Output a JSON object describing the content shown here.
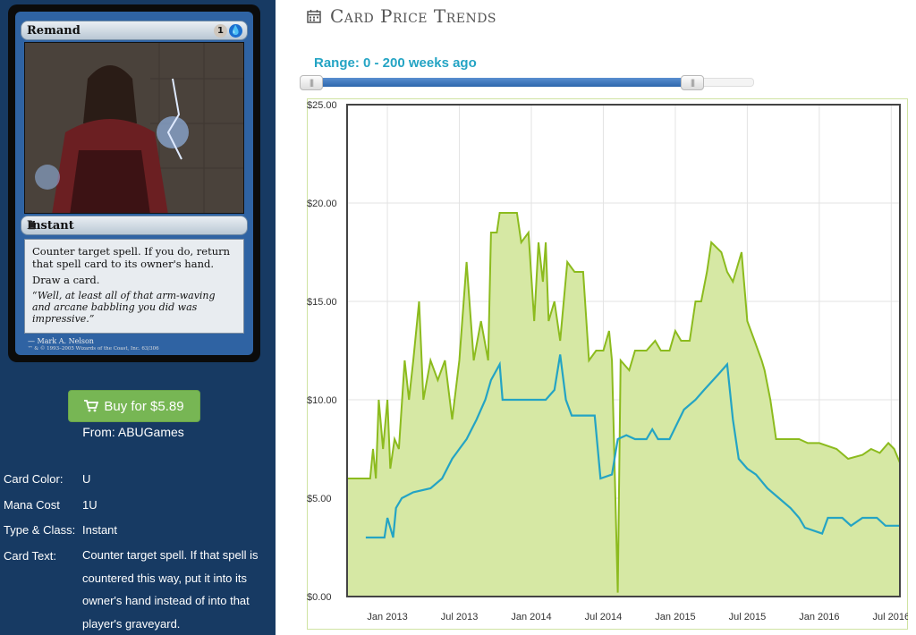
{
  "card": {
    "name": "Remand",
    "mana_generic": "1",
    "mana_blue": "",
    "type_line": "Instant",
    "rules": [
      "Counter target spell. If you do, return that spell card to its owner's hand.",
      "Draw a card."
    ],
    "flavor": "“Well, at least all of that arm-waving and arcane babbling you did was impressive.”",
    "artist": "Mark A. Nelson",
    "copyright": "™ & © 1993–2005 Wizards of the Coast, Inc. 63/306"
  },
  "buy": {
    "label": "Buy for $5.89",
    "icon": "cart-icon",
    "color": "#77b654",
    "from": "From: ABUGames"
  },
  "details": [
    {
      "label": "Card Color:",
      "value": "U"
    },
    {
      "label": "Mana Cost",
      "value": "1U"
    },
    {
      "label": "Type & Class:",
      "value": "Instant"
    },
    {
      "label": "Card Text:",
      "value": "Counter target spell. If that spell is countered this way, put it into its owner's hand instead of into that player's graveyard."
    }
  ],
  "trends": {
    "title": "Card Price Trends",
    "icon": "calendar-icon",
    "range_label": "Range: 0 - 200 weeks ago",
    "range_start_fraction": 0.02,
    "range_end_fraction": 0.86
  },
  "chart_data": {
    "type": "line",
    "title": "",
    "xlabel": "",
    "ylabel": "",
    "ylim": [
      0,
      25
    ],
    "yticks": [
      "$0.00",
      "$5.00",
      "$10.00",
      "$15.00",
      "$20.00",
      "$25.00"
    ],
    "xticks": [
      {
        "label": "Jan 2013",
        "t": 2013.0
      },
      {
        "label": "Jul 2013",
        "t": 2013.5
      },
      {
        "label": "Jan 2014",
        "t": 2014.0
      },
      {
        "label": "Jul 2014",
        "t": 2014.5
      },
      {
        "label": "Jan 2015",
        "t": 2015.0
      },
      {
        "label": "Jul 2015",
        "t": 2015.5
      },
      {
        "label": "Jan 2016",
        "t": 2016.0
      },
      {
        "label": "Jul 2016",
        "t": 2016.5
      }
    ],
    "xlim": [
      2012.72,
      2016.56
    ],
    "series": [
      {
        "name": "",
        "color": "#8cbb1e",
        "fill": "#d6e8a4",
        "points": [
          [
            2012.72,
            6.0
          ],
          [
            2012.88,
            6.0
          ],
          [
            2012.9,
            7.5
          ],
          [
            2012.92,
            6.0
          ],
          [
            2012.94,
            10.0
          ],
          [
            2012.97,
            7.5
          ],
          [
            2013.0,
            10.0
          ],
          [
            2013.02,
            6.5
          ],
          [
            2013.05,
            8.0
          ],
          [
            2013.08,
            7.5
          ],
          [
            2013.12,
            12.0
          ],
          [
            2013.15,
            10.0
          ],
          [
            2013.18,
            12.0
          ],
          [
            2013.22,
            15.0
          ],
          [
            2013.25,
            10.0
          ],
          [
            2013.3,
            12.0
          ],
          [
            2013.35,
            11.0
          ],
          [
            2013.4,
            12.0
          ],
          [
            2013.45,
            9.0
          ],
          [
            2013.5,
            12.0
          ],
          [
            2013.55,
            17.0
          ],
          [
            2013.6,
            12.0
          ],
          [
            2013.65,
            14.0
          ],
          [
            2013.7,
            12.0
          ],
          [
            2013.72,
            18.5
          ],
          [
            2013.76,
            18.5
          ],
          [
            2013.78,
            19.5
          ],
          [
            2013.9,
            19.5
          ],
          [
            2013.93,
            18.0
          ],
          [
            2013.98,
            18.5
          ],
          [
            2014.02,
            14.0
          ],
          [
            2014.05,
            18.0
          ],
          [
            2014.08,
            16.0
          ],
          [
            2014.1,
            18.0
          ],
          [
            2014.12,
            14.0
          ],
          [
            2014.16,
            15.0
          ],
          [
            2014.2,
            13.0
          ],
          [
            2014.25,
            17.0
          ],
          [
            2014.3,
            16.5
          ],
          [
            2014.36,
            16.5
          ],
          [
            2014.4,
            12.0
          ],
          [
            2014.45,
            12.5
          ],
          [
            2014.5,
            12.5
          ],
          [
            2014.54,
            13.5
          ],
          [
            2014.56,
            12.0
          ],
          [
            2014.6,
            0.2
          ],
          [
            2014.62,
            12.0
          ],
          [
            2014.68,
            11.5
          ],
          [
            2014.72,
            12.5
          ],
          [
            2014.8,
            12.5
          ],
          [
            2014.86,
            13.0
          ],
          [
            2014.9,
            12.5
          ],
          [
            2014.96,
            12.5
          ],
          [
            2015.0,
            13.5
          ],
          [
            2015.04,
            13.0
          ],
          [
            2015.1,
            13.0
          ],
          [
            2015.14,
            15.0
          ],
          [
            2015.18,
            15.0
          ],
          [
            2015.22,
            16.5
          ],
          [
            2015.25,
            18.0
          ],
          [
            2015.32,
            17.5
          ],
          [
            2015.36,
            16.5
          ],
          [
            2015.4,
            16.0
          ],
          [
            2015.46,
            17.5
          ],
          [
            2015.5,
            14.0
          ],
          [
            2015.55,
            13.0
          ],
          [
            2015.6,
            12.0
          ],
          [
            2015.62,
            11.5
          ],
          [
            2015.66,
            10.0
          ],
          [
            2015.7,
            8.0
          ],
          [
            2015.76,
            8.0
          ],
          [
            2015.86,
            8.0
          ],
          [
            2015.92,
            7.8
          ],
          [
            2016.0,
            7.8
          ],
          [
            2016.12,
            7.5
          ],
          [
            2016.2,
            7.0
          ],
          [
            2016.3,
            7.2
          ],
          [
            2016.36,
            7.5
          ],
          [
            2016.42,
            7.3
          ],
          [
            2016.48,
            7.8
          ],
          [
            2016.52,
            7.5
          ],
          [
            2016.56,
            6.8
          ]
        ]
      },
      {
        "name": "",
        "color": "#24a4c4",
        "points": [
          [
            2012.85,
            3.0
          ],
          [
            2012.98,
            3.0
          ],
          [
            2013.0,
            4.0
          ],
          [
            2013.04,
            3.0
          ],
          [
            2013.06,
            4.5
          ],
          [
            2013.1,
            5.0
          ],
          [
            2013.18,
            5.3
          ],
          [
            2013.3,
            5.5
          ],
          [
            2013.38,
            6.0
          ],
          [
            2013.45,
            7.0
          ],
          [
            2013.5,
            7.5
          ],
          [
            2013.55,
            8.0
          ],
          [
            2013.62,
            9.0
          ],
          [
            2013.68,
            10.0
          ],
          [
            2013.72,
            11.0
          ],
          [
            2013.78,
            11.8
          ],
          [
            2013.8,
            10.0
          ],
          [
            2013.9,
            10.0
          ],
          [
            2014.0,
            10.0
          ],
          [
            2014.1,
            10.0
          ],
          [
            2014.16,
            10.5
          ],
          [
            2014.2,
            12.3
          ],
          [
            2014.24,
            10.0
          ],
          [
            2014.28,
            9.2
          ],
          [
            2014.36,
            9.2
          ],
          [
            2014.44,
            9.2
          ],
          [
            2014.48,
            6.0
          ],
          [
            2014.56,
            6.2
          ],
          [
            2014.6,
            8.0
          ],
          [
            2014.66,
            8.2
          ],
          [
            2014.72,
            8.0
          ],
          [
            2014.8,
            8.0
          ],
          [
            2014.84,
            8.5
          ],
          [
            2014.88,
            8.0
          ],
          [
            2014.96,
            8.0
          ],
          [
            2015.06,
            9.5
          ],
          [
            2015.14,
            10.0
          ],
          [
            2015.2,
            10.5
          ],
          [
            2015.3,
            11.3
          ],
          [
            2015.36,
            11.8
          ],
          [
            2015.4,
            9.0
          ],
          [
            2015.44,
            7.0
          ],
          [
            2015.5,
            6.5
          ],
          [
            2015.56,
            6.2
          ],
          [
            2015.64,
            5.5
          ],
          [
            2015.72,
            5.0
          ],
          [
            2015.8,
            4.5
          ],
          [
            2015.86,
            4.0
          ],
          [
            2015.9,
            3.5
          ],
          [
            2016.02,
            3.2
          ],
          [
            2016.06,
            4.0
          ],
          [
            2016.16,
            4.0
          ],
          [
            2016.22,
            3.6
          ],
          [
            2016.3,
            4.0
          ],
          [
            2016.4,
            4.0
          ],
          [
            2016.46,
            3.6
          ],
          [
            2016.56,
            3.6
          ]
        ]
      }
    ]
  }
}
